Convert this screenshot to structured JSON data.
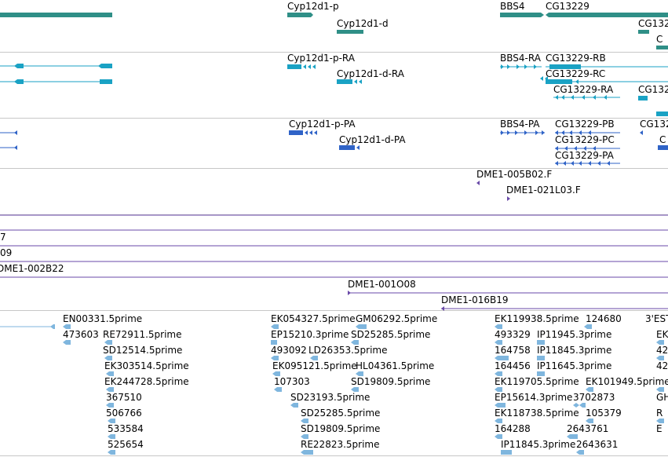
{
  "colors": {
    "gene": "#2f8f87",
    "transcript": "#1aa2c4",
    "protein": "#2f63c7",
    "clone": "#6a4aa8",
    "est": "#7fb6de",
    "border": "#c7c7c7"
  },
  "tracks": {
    "genes": {
      "labels": [
        {
          "id": "cyp12d1-p",
          "text": "Cyp12d1-p"
        },
        {
          "id": "cyp12d1-d",
          "text": "Cyp12d1-d"
        },
        {
          "id": "bbs4",
          "text": "BBS4"
        },
        {
          "id": "cg13229",
          "text": "CG13229"
        },
        {
          "id": "cg132-cut",
          "text": "CG132"
        }
      ]
    },
    "transcripts": {
      "labels": [
        {
          "id": "cyp12d1-p-ra",
          "text": "Cyp12d1-p-RA"
        },
        {
          "id": "cyp12d1-d-ra",
          "text": "Cyp12d1-d-RA"
        },
        {
          "id": "bbs4-ra",
          "text": "BBS4-RA"
        },
        {
          "id": "cg13229-rb",
          "text": "CG13229-RB"
        },
        {
          "id": "cg13229-rc",
          "text": "CG13229-RC"
        },
        {
          "id": "cg13229-ra",
          "text": "CG13229-RA"
        },
        {
          "id": "cg132-cut",
          "text": "CG132"
        }
      ]
    },
    "proteins": {
      "labels": [
        {
          "id": "cyp12d1-p-pa",
          "text": "Cyp12d1-p-PA"
        },
        {
          "id": "cyp12d1-d-pa",
          "text": "Cyp12d1-d-PA"
        },
        {
          "id": "bbs4-pa",
          "text": "BBS4-PA"
        },
        {
          "id": "cg13229-pb",
          "text": "CG13229-PB"
        },
        {
          "id": "cg13229-pc",
          "text": "CG13229-PC"
        },
        {
          "id": "cg13229-pa",
          "text": "CG13229-PA"
        },
        {
          "id": "cg132-cut",
          "text": "CG132"
        },
        {
          "id": "c-cut",
          "text": "C"
        }
      ]
    },
    "clones": {
      "labels": [
        {
          "id": "dme1-005b02",
          "text": "DME1-005B02.F"
        },
        {
          "id": "dme1-021l03",
          "text": "DME1-021L03.F"
        },
        {
          "id": "cut-7",
          "text": "7"
        },
        {
          "id": "cut-09",
          "text": "09"
        },
        {
          "id": "dme1-002b22",
          "text": "DME1-002B22"
        },
        {
          "id": "dme1-001o08",
          "text": "DME1-001O08"
        },
        {
          "id": "dme1-016b19",
          "text": "DME1-016B19"
        }
      ]
    },
    "ests": {
      "labels": [
        {
          "id": "en00331",
          "text": "EN00331.5prime"
        },
        {
          "id": "473603",
          "text": "473603"
        },
        {
          "id": "re72911",
          "text": "RE72911.5prime"
        },
        {
          "id": "sd12514",
          "text": "SD12514.5prime"
        },
        {
          "id": "ek303514",
          "text": "EK303514.5prime"
        },
        {
          "id": "ek244728",
          "text": "EK244728.5prime"
        },
        {
          "id": "367510",
          "text": "367510"
        },
        {
          "id": "506766",
          "text": "506766"
        },
        {
          "id": "533584",
          "text": "533584"
        },
        {
          "id": "525654",
          "text": "525654"
        },
        {
          "id": "ek054327",
          "text": "EK054327.5prime"
        },
        {
          "id": "gm06292",
          "text": "GM06292.5prime"
        },
        {
          "id": "ep15210",
          "text": "EP15210.3prime"
        },
        {
          "id": "sd25285a",
          "text": "SD25285.5prime"
        },
        {
          "id": "493092",
          "text": "493092"
        },
        {
          "id": "ld26353",
          "text": "LD26353.5prime"
        },
        {
          "id": "ek095121",
          "text": "EK095121.5prime"
        },
        {
          "id": "hl04361",
          "text": "HL04361.5prime"
        },
        {
          "id": "107303",
          "text": "107303"
        },
        {
          "id": "sd19809a",
          "text": "SD19809.5prime"
        },
        {
          "id": "sd23193",
          "text": "SD23193.5prime"
        },
        {
          "id": "sd25285b",
          "text": "SD25285.5prime"
        },
        {
          "id": "sd19809b",
          "text": "SD19809.5prime"
        },
        {
          "id": "re22823",
          "text": "RE22823.5prime"
        },
        {
          "id": "ek119938",
          "text": "EK119938.5prime"
        },
        {
          "id": "124680",
          "text": "124680"
        },
        {
          "id": "3est",
          "text": "3'EST"
        },
        {
          "id": "493329",
          "text": "493329"
        },
        {
          "id": "ip11945",
          "text": "IP11945.3prime"
        },
        {
          "id": "164758",
          "text": "164758"
        },
        {
          "id": "ip11845a",
          "text": "IP11845.3prime"
        },
        {
          "id": "164456",
          "text": "164456"
        },
        {
          "id": "ip11645",
          "text": "IP11645.3prime"
        },
        {
          "id": "ek119705",
          "text": "EK119705.5prime"
        },
        {
          "id": "ek101949",
          "text": "EK101949.5prime"
        },
        {
          "id": "ep15614",
          "text": "EP15614.3prime"
        },
        {
          "id": "3702873",
          "text": "3702873"
        },
        {
          "id": "ek118738",
          "text": "EK118738.5prime"
        },
        {
          "id": "105379",
          "text": "105379"
        },
        {
          "id": "164288",
          "text": "164288"
        },
        {
          "id": "2643761",
          "text": "2643761"
        },
        {
          "id": "ip11845b",
          "text": "IP11845.3prime"
        },
        {
          "id": "2643631",
          "text": "2643631"
        },
        {
          "id": "cut-ek",
          "text": "EK"
        },
        {
          "id": "cut-42a",
          "text": "42"
        },
        {
          "id": "cut-42b",
          "text": "42"
        },
        {
          "id": "cut-gh",
          "text": "GH"
        },
        {
          "id": "cut-r",
          "text": "R"
        },
        {
          "id": "cut-e",
          "text": "E"
        }
      ]
    }
  }
}
